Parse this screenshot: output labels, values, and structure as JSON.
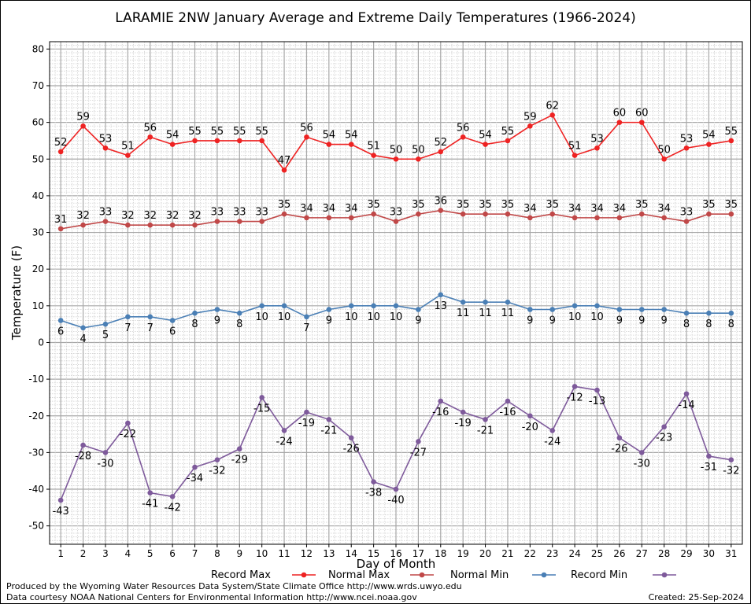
{
  "chart_data": {
    "type": "line",
    "title": "LARAMIE 2NW January Average and Extreme Daily Temperatures (1966-2024)",
    "xlabel": "Day of Month",
    "ylabel": "Temperature (F)",
    "ylim": [
      -55,
      82
    ],
    "yticks": [
      -50,
      -40,
      -30,
      -20,
      -10,
      0,
      10,
      20,
      30,
      40,
      50,
      60,
      70,
      80
    ],
    "x": [
      1,
      2,
      3,
      4,
      5,
      6,
      7,
      8,
      9,
      10,
      11,
      12,
      13,
      14,
      15,
      16,
      17,
      18,
      19,
      20,
      21,
      22,
      23,
      24,
      25,
      26,
      27,
      28,
      29,
      30,
      31
    ],
    "grid": true,
    "legend_position": "bottom",
    "series": [
      {
        "name": "Record Max",
        "color": "#ee2222",
        "label_pos": "above",
        "values": [
          52,
          59,
          53,
          51,
          56,
          54,
          55,
          55,
          55,
          55,
          47,
          56,
          54,
          54,
          51,
          50,
          50,
          52,
          56,
          54,
          55,
          59,
          62,
          51,
          53,
          60,
          60,
          50,
          53,
          54,
          55
        ]
      },
      {
        "name": "Normal Max",
        "color": "#c04848",
        "label_pos": "above",
        "values": [
          31,
          32,
          33,
          32,
          32,
          32,
          32,
          33,
          33,
          33,
          35,
          34,
          34,
          34,
          35,
          33,
          35,
          36,
          35,
          35,
          35,
          34,
          35,
          34,
          34,
          34,
          35,
          34,
          33,
          35,
          35
        ]
      },
      {
        "name": "Normal Min",
        "color": "#4a7fb5",
        "label_pos": "below",
        "values": [
          6,
          4,
          5,
          7,
          7,
          6,
          8,
          9,
          8,
          10,
          10,
          7,
          9,
          10,
          10,
          10,
          9,
          13,
          11,
          11,
          11,
          9,
          9,
          10,
          10,
          9,
          9,
          9,
          8,
          8,
          8
        ]
      },
      {
        "name": "Record Min",
        "color": "#7e5a9b",
        "label_pos": "below",
        "values": [
          -43,
          -28,
          -30,
          -22,
          -41,
          -42,
          -34,
          -32,
          -29,
          -15,
          -24,
          -19,
          -21,
          -26,
          -38,
          -40,
          -27,
          -16,
          -19,
          -21,
          -16,
          -20,
          -24,
          -12,
          -13,
          -26,
          -30,
          -23,
          -14,
          -31,
          -32
        ]
      }
    ]
  },
  "footer": {
    "line1": "Produced by the Wyoming Water Resources Data System/State Climate Office http://www.wrds.uwyo.edu",
    "line2": "Data courtesy NOAA National Centers for Environmental Information http://www.ncei.noaa.gov",
    "created": "Created:  25-Sep-2024"
  }
}
